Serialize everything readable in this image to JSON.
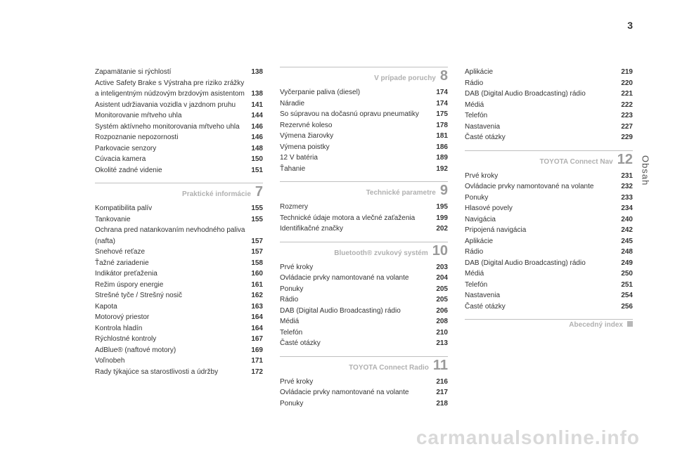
{
  "page_number": "3",
  "side_tab": "Obsah",
  "watermark": "carmanualsonline.info",
  "columns": [
    {
      "items": [
        {
          "type": "entry",
          "label": "Zapamätanie si rýchlostí",
          "page": "138"
        },
        {
          "type": "entry",
          "label": "Active Safety Brake s Výstraha pre riziko zrážky a inteligentným núdzovým brzdovým asistentom",
          "page": "138"
        },
        {
          "type": "entry",
          "label": "Asistent udržiavania vozidla v jazdnom pruhu",
          "page": "141"
        },
        {
          "type": "entry",
          "label": "Monitorovanie mŕtveho uhla",
          "page": "144"
        },
        {
          "type": "entry",
          "label": "Systém aktívneho monitorovania mŕtveho uhla",
          "page": "146"
        },
        {
          "type": "entry",
          "label": "Rozpoznanie nepozornosti",
          "page": "146"
        },
        {
          "type": "entry",
          "label": "Parkovacie senzory",
          "page": "148"
        },
        {
          "type": "entry",
          "label": "Cúvacia kamera",
          "page": "150"
        },
        {
          "type": "entry",
          "label": "Okolité zadné videnie",
          "page": "151"
        },
        {
          "type": "section",
          "title": "Praktické informácie",
          "num": "7"
        },
        {
          "type": "entry",
          "label": "Kompatibilita palív",
          "page": "155"
        },
        {
          "type": "entry",
          "label": "Tankovanie",
          "page": "155"
        },
        {
          "type": "entry",
          "label": "Ochrana pred natankovaním nevhodného paliva (nafta)",
          "page": "157"
        },
        {
          "type": "entry",
          "label": "Snehové reťaze",
          "page": "157"
        },
        {
          "type": "entry",
          "label": "Ťažné zariadenie",
          "page": "158"
        },
        {
          "type": "entry",
          "label": "Indikátor preťaženia",
          "page": "160"
        },
        {
          "type": "entry",
          "label": "Režim úspory energie",
          "page": "161"
        },
        {
          "type": "entry",
          "label": "Strešné tyče / Strešný nosič",
          "page": "162"
        },
        {
          "type": "entry",
          "label": "Kapota",
          "page": "163"
        },
        {
          "type": "entry",
          "label": "Motorový priestor",
          "page": "164"
        },
        {
          "type": "entry",
          "label": "Kontrola hladín",
          "page": "164"
        },
        {
          "type": "entry",
          "label": "Rýchlostné kontroly",
          "page": "167"
        },
        {
          "type": "entry",
          "label": "AdBlue® (naftové motory)",
          "page": "169"
        },
        {
          "type": "entry",
          "label": "Voľnobeh",
          "page": "171"
        },
        {
          "type": "entry",
          "label": "Rady týkajúce sa starostlivosti a údržby",
          "page": "172"
        }
      ]
    },
    {
      "items": [
        {
          "type": "section",
          "title": "V prípade poruchy",
          "num": "8",
          "no_top_gap": true
        },
        {
          "type": "entry",
          "label": "Vyčerpanie paliva (diesel)",
          "page": "174"
        },
        {
          "type": "entry",
          "label": "Náradie",
          "page": "174"
        },
        {
          "type": "entry",
          "label": "So súpravou na dočasnú opravu pneumatiky",
          "page": "175"
        },
        {
          "type": "entry",
          "label": "Rezervné koleso",
          "page": "178"
        },
        {
          "type": "entry",
          "label": "Výmena žiarovky",
          "page": "181"
        },
        {
          "type": "entry",
          "label": "Výmena poistky",
          "page": "186"
        },
        {
          "type": "entry",
          "label": "12 V batéria",
          "page": "189"
        },
        {
          "type": "entry",
          "label": "Ťahanie",
          "page": "192"
        },
        {
          "type": "section",
          "title": "Technické parametre",
          "num": "9"
        },
        {
          "type": "entry",
          "label": "Rozmery",
          "page": "195"
        },
        {
          "type": "entry",
          "label": "Technické údaje motora a vlečné zaťaženia",
          "page": "199"
        },
        {
          "type": "entry",
          "label": "Identifikačné značky",
          "page": "202"
        },
        {
          "type": "section",
          "title": "Bluetooth® zvukový systém",
          "num": "10"
        },
        {
          "type": "entry",
          "label": "Prvé kroky",
          "page": "203"
        },
        {
          "type": "entry",
          "label": "Ovládacie prvky namontované na volante",
          "page": "204"
        },
        {
          "type": "entry",
          "label": "Ponuky",
          "page": "205"
        },
        {
          "type": "entry",
          "label": "Rádio",
          "page": "205"
        },
        {
          "type": "entry",
          "label": "DAB (Digital Audio Broadcasting) rádio",
          "page": "206"
        },
        {
          "type": "entry",
          "label": "Médiá",
          "page": "208"
        },
        {
          "type": "entry",
          "label": "Telefón",
          "page": "210"
        },
        {
          "type": "entry",
          "label": "Časté otázky",
          "page": "213"
        },
        {
          "type": "section",
          "title": "TOYOTA Connect Radio",
          "num": "11"
        },
        {
          "type": "entry",
          "label": "Prvé kroky",
          "page": "216"
        },
        {
          "type": "entry",
          "label": "Ovládacie prvky namontované na volante",
          "page": "217"
        },
        {
          "type": "entry",
          "label": "Ponuky",
          "page": "218"
        }
      ]
    },
    {
      "items": [
        {
          "type": "entry",
          "label": "Aplikácie",
          "page": "219"
        },
        {
          "type": "entry",
          "label": "Rádio",
          "page": "220"
        },
        {
          "type": "entry",
          "label": "DAB (Digital Audio Broadcasting) rádio",
          "page": "221"
        },
        {
          "type": "entry",
          "label": "Médiá",
          "page": "222"
        },
        {
          "type": "entry",
          "label": "Telefón",
          "page": "223"
        },
        {
          "type": "entry",
          "label": "Nastavenia",
          "page": "227"
        },
        {
          "type": "entry",
          "label": "Časté otázky",
          "page": "229"
        },
        {
          "type": "section",
          "title": "TOYOTA Connect Nav",
          "num": "12"
        },
        {
          "type": "entry",
          "label": "Prvé kroky",
          "page": "231"
        },
        {
          "type": "entry",
          "label": "Ovládacie prvky namontované na volante",
          "page": "232"
        },
        {
          "type": "entry",
          "label": "Ponuky",
          "page": "233"
        },
        {
          "type": "entry",
          "label": "Hlasové povely",
          "page": "234"
        },
        {
          "type": "entry",
          "label": "Navigácia",
          "page": "240"
        },
        {
          "type": "entry",
          "label": "Pripojená navigácia",
          "page": "242"
        },
        {
          "type": "entry",
          "label": "Aplikácie",
          "page": "245"
        },
        {
          "type": "entry",
          "label": "Rádio",
          "page": "248"
        },
        {
          "type": "entry",
          "label": "DAB (Digital Audio Broadcasting) rádio",
          "page": "249"
        },
        {
          "type": "entry",
          "label": "Médiá",
          "page": "250"
        },
        {
          "type": "entry",
          "label": "Telefón",
          "page": "251"
        },
        {
          "type": "entry",
          "label": "Nastavenia",
          "page": "254"
        },
        {
          "type": "entry",
          "label": "Časté otázky",
          "page": "256"
        },
        {
          "type": "section",
          "title": "Abecedný index",
          "square": true
        }
      ]
    }
  ]
}
